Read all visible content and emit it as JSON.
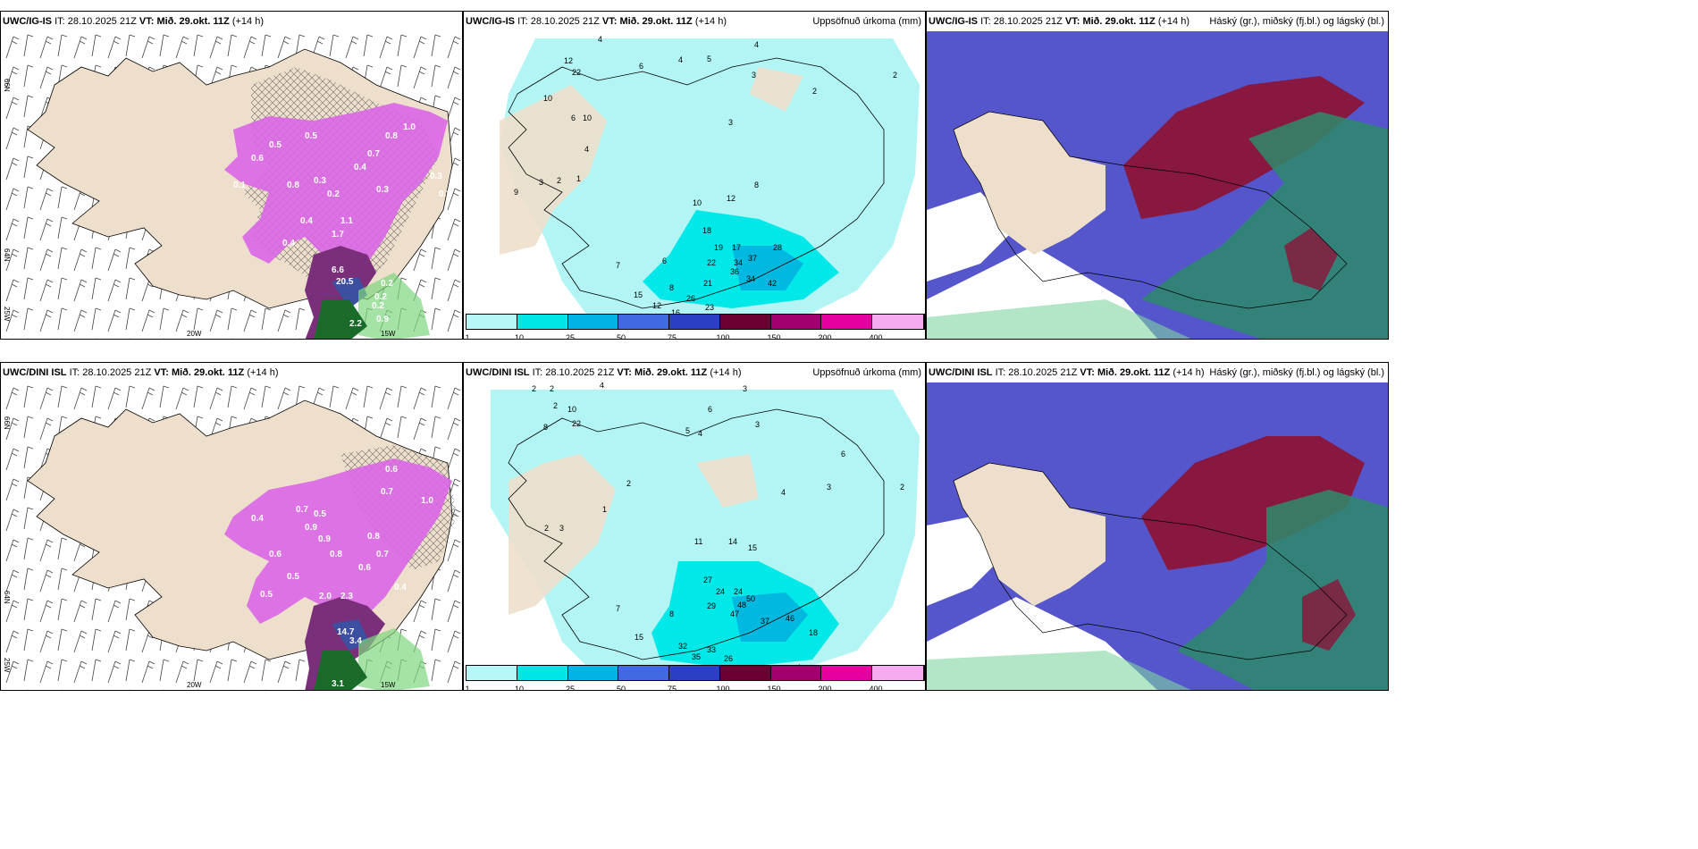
{
  "panels": [
    {
      "id": "ig-wind",
      "model": "UWC/IG-IS",
      "it_label": "IT:",
      "it": "28.10.2025 21Z",
      "vt_label": "VT:",
      "vt": "Mið. 29.okt. 11Z",
      "lead": "(+14 h)",
      "right_title": ""
    },
    {
      "id": "ig-precip",
      "model": "UWC/IG-IS",
      "it_label": "IT:",
      "it": "28.10.2025 21Z",
      "vt_label": "VT:",
      "vt": "Mið. 29.okt. 11Z",
      "lead": "(+14 h)",
      "right_title": "Uppsöfnuð úrkoma (mm)"
    },
    {
      "id": "ig-cloud",
      "model": "UWC/IG-IS",
      "it_label": "IT:",
      "it": "28.10.2025 21Z",
      "vt_label": "VT:",
      "vt": "Mið. 29.okt. 11Z",
      "lead": "(+14 h)",
      "right_title": "Háský (gr.), miðský (fj.bl.) og lágský (bl.)"
    },
    {
      "id": "dini-wind",
      "model": "UWC/DINI ISL",
      "it_label": "IT:",
      "it": "28.10.2025 21Z",
      "vt_label": "VT:",
      "vt": "Mið. 29.okt. 11Z",
      "lead": "(+14 h)",
      "right_title": ""
    },
    {
      "id": "dini-precip",
      "model": "UWC/DINI ISL",
      "it_label": "IT:",
      "it": "28.10.2025 21Z",
      "vt_label": "VT:",
      "vt": "Mið. 29.okt. 11Z",
      "lead": "(+14 h)",
      "right_title": "Uppsöfnuð úrkoma (mm)"
    },
    {
      "id": "dini-cloud",
      "model": "UWC/DINI ISL",
      "it_label": "IT:",
      "it": "28.10.2025 21Z",
      "vt_label": "VT:",
      "vt": "Mið. 29.okt. 11Z",
      "lead": "(+14 h)",
      "right_title": "Háský (gr.), miðský (fj.bl.) og lágský (bl.)"
    }
  ],
  "axis_labels": {
    "lat_66": "66N",
    "lat_64": "64N",
    "lon_20": "20W",
    "lon_15": "15W",
    "lon_25": "25W"
  },
  "colorbar": {
    "labels": [
      "1",
      "10",
      "25",
      "50",
      "75",
      "100",
      "150",
      "200",
      "400"
    ],
    "colors": [
      "#b8f7f7",
      "#00e5e5",
      "#00b4e6",
      "#4169e1",
      "#2b3fc4",
      "#6b0033",
      "#a0006b",
      "#e600a0",
      "#f5aaf0"
    ]
  },
  "colors": {
    "land": "#eedfcc",
    "precip_light": "#b3f5f5",
    "precip_mid": "#00e8e8",
    "precip_high": "#00b8e0",
    "snow": "#d966e6",
    "snow_dark": "#7a2f7a",
    "high_cloud": "#5555cc",
    "mid_cloud": "#8b1538",
    "low_cloud": "#2e8b6b",
    "sea": "#ffffff"
  },
  "values": {
    "ig_wind": [
      "0.5",
      "0.5",
      "0.8",
      "0.7",
      "1.0",
      "0.6",
      "0.4",
      "0.3",
      "0.3",
      "0.3",
      "0.2",
      "0.3",
      "0.4",
      "1.1",
      "1.7",
      "0.4",
      "0.1",
      "6.6",
      "20.5",
      "0.2",
      "0.2",
      "0.2",
      "0.8",
      "2.2",
      "0.9"
    ],
    "dini_wind": [
      "0.6",
      "0.7",
      "0.5",
      "1.0",
      "0.4",
      "0.7",
      "0.8",
      "0.9",
      "0.8",
      "0.6",
      "0.4",
      "0.5",
      "0.6",
      "0.7",
      "2.0",
      "2.3",
      "14.7",
      "3.4",
      "3.1",
      "0.5",
      "0.9"
    ],
    "ig_precip": [
      "4",
      "4",
      "6",
      "5",
      "4",
      "3",
      "2",
      "2",
      "12",
      "22",
      "10",
      "6",
      "10",
      "4",
      "2",
      "1",
      "3",
      "9",
      "3",
      "8",
      "12",
      "10",
      "18",
      "19",
      "22",
      "17",
      "28",
      "37",
      "34",
      "36",
      "34",
      "42",
      "21",
      "15",
      "12",
      "16",
      "19",
      "23",
      "7",
      "6",
      "8",
      "26",
      "10"
    ],
    "dini_precip": [
      "2",
      "2",
      "4",
      "2",
      "10",
      "22",
      "8",
      "6",
      "3",
      "5",
      "4",
      "3",
      "6",
      "2",
      "1",
      "2",
      "3",
      "4",
      "2",
      "3",
      "11",
      "14",
      "15",
      "27",
      "24",
      "24",
      "29",
      "47",
      "48",
      "50",
      "37",
      "46",
      "18",
      "15",
      "32",
      "33",
      "35",
      "26",
      "8",
      "7",
      "4"
    ]
  }
}
